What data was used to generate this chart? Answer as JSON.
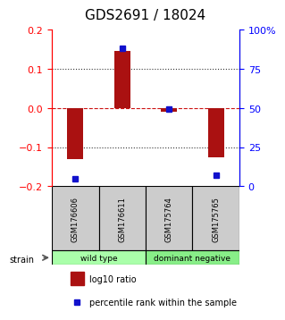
{
  "title": "GDS2691 / 18024",
  "samples": [
    "GSM176606",
    "GSM176611",
    "GSM175764",
    "GSM175765"
  ],
  "log10_ratio": [
    -0.13,
    0.145,
    -0.01,
    -0.125
  ],
  "percentile_rank": [
    5,
    88,
    49,
    7
  ],
  "ylim_left": [
    -0.2,
    0.2
  ],
  "ylim_right": [
    0,
    100
  ],
  "yticks_left": [
    -0.2,
    -0.1,
    0,
    0.1,
    0.2
  ],
  "yticks_right": [
    0,
    25,
    50,
    75,
    100
  ],
  "ytick_labels_right": [
    "0",
    "25",
    "50",
    "75",
    "100%"
  ],
  "bar_color": "#aa1111",
  "dot_color": "#1111cc",
  "zero_line_color": "#cc1111",
  "dotted_line_color": "#333333",
  "groups": [
    {
      "label": "wild type",
      "samples": [
        0,
        1
      ],
      "color": "#aaffaa"
    },
    {
      "label": "dominant negative",
      "samples": [
        2,
        3
      ],
      "color": "#88ee88"
    }
  ],
  "strain_label": "strain",
  "legend_bar_label": "log10 ratio",
  "legend_dot_label": "percentile rank within the sample",
  "background_color": "#ffffff",
  "box_color": "#cccccc",
  "title_fontsize": 11,
  "tick_fontsize": 8,
  "label_fontsize": 8
}
